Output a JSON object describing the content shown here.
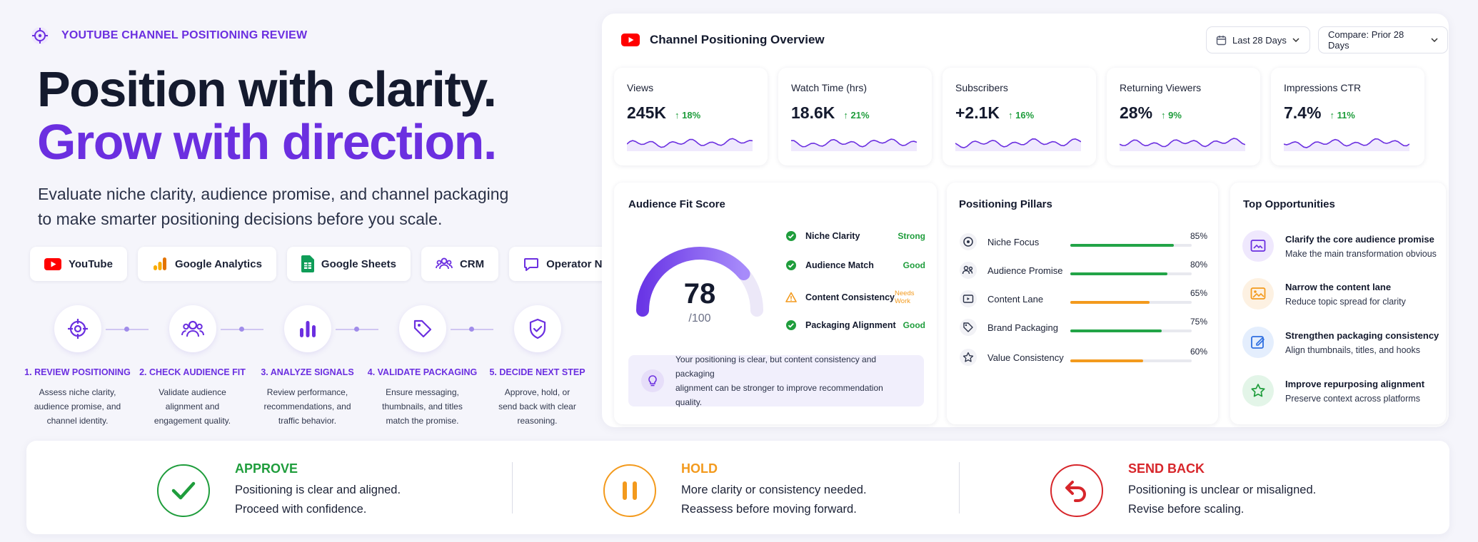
{
  "header": {
    "eyebrow": "YOUTUBE CHANNEL POSITIONING REVIEW",
    "headline_line1": "Position with clarity.",
    "headline_line2": "Grow with direction."
  },
  "subtitle": {
    "line1": "Evaluate niche clarity, audience promise, and channel packaging",
    "line2": "to make smarter positioning decisions before you scale."
  },
  "integrations": [
    "YouTube",
    "Google Analytics",
    "Google Sheets",
    "CRM",
    "Operator Notes"
  ],
  "steps": [
    {
      "title": "1. REVIEW POSITIONING",
      "d1": "Assess niche clarity,",
      "d2": "audience promise, and",
      "d3": "channel identity.",
      "icon": "target-icon"
    },
    {
      "title": "2. CHECK AUDIENCE FIT",
      "d1": "Validate audience",
      "d2": "alignment and",
      "d3": "engagement quality.",
      "icon": "users-icon"
    },
    {
      "title": "3. ANALYZE SIGNALS",
      "d1": "Review performance,",
      "d2": "recommendations, and",
      "d3": "traffic behavior.",
      "icon": "bar-chart-icon"
    },
    {
      "title": "4. VALIDATE PACKAGING",
      "d1": "Ensure messaging,",
      "d2": "thumbnails, and titles",
      "d3": "match the promise.",
      "icon": "tag-icon"
    },
    {
      "title": "5. DECIDE NEXT STEP",
      "d1": "Approve, hold, or",
      "d2": "send back with clear",
      "d3": "reasoning.",
      "icon": "shield-check-icon"
    }
  ],
  "panel": {
    "title": "Channel Positioning Overview",
    "range": "Last 28 Days",
    "compare": "Compare: Prior 28 Days"
  },
  "metrics": [
    {
      "label": "Views",
      "value": "245K",
      "change": "18%"
    },
    {
      "label": "Watch Time (hrs)",
      "value": "18.6K",
      "change": "21%"
    },
    {
      "label": "Subscribers",
      "value": "+2.1K",
      "change": "16%"
    },
    {
      "label": "Returning Viewers",
      "value": "28%",
      "change": "9%"
    },
    {
      "label": "Impressions CTR",
      "value": "7.4%",
      "change": "11%"
    }
  ],
  "audience_fit": {
    "title": "Audience Fit Score",
    "score": "78",
    "out_of": "/100",
    "score_fraction": 0.78,
    "items": [
      {
        "name": "Niche Clarity",
        "status": "Strong",
        "state": "ok"
      },
      {
        "name": "Audience Match",
        "status": "Good",
        "state": "ok"
      },
      {
        "name": "Content Consistency",
        "status": "Needs Work",
        "state": "warn"
      },
      {
        "name": "Packaging Alignment",
        "status": "Good",
        "state": "ok"
      }
    ],
    "note_line1": "Your positioning is clear, but content consistency and packaging",
    "note_line2": "alignment can be stronger to improve recommendation quality."
  },
  "pillars": {
    "title": "Positioning Pillars",
    "items": [
      {
        "name": "Niche Focus",
        "pct": "85%",
        "value": 0.85,
        "color": "#22a447"
      },
      {
        "name": "Audience Promise",
        "pct": "80%",
        "value": 0.8,
        "color": "#22a447"
      },
      {
        "name": "Content Lane",
        "pct": "65%",
        "value": 0.65,
        "color": "#f39a1d"
      },
      {
        "name": "Brand Packaging",
        "pct": "75%",
        "value": 0.75,
        "color": "#22a447"
      },
      {
        "name": "Value Consistency",
        "pct": "60%",
        "value": 0.6,
        "color": "#f39a1d"
      }
    ]
  },
  "opportunities": {
    "title": "Top Opportunities",
    "items": [
      {
        "title": "Clarify the core audience promise",
        "sub": "Make the main transformation obvious"
      },
      {
        "title": "Narrow the content lane",
        "sub": "Reduce topic spread for clarity"
      },
      {
        "title": "Strengthen packaging consistency",
        "sub": "Align thumbnails, titles, and hooks"
      },
      {
        "title": "Improve repurposing alignment",
        "sub": "Preserve context across platforms"
      }
    ]
  },
  "decisions": [
    {
      "title": "APPROVE",
      "l1": "Positioning is clear and aligned.",
      "l2": "Proceed with confidence.",
      "color": "#1f9d3c"
    },
    {
      "title": "HOLD",
      "l1": "More clarity or consistency needed.",
      "l2": "Reassess before moving forward.",
      "color": "#f39a1d"
    },
    {
      "title": "SEND BACK",
      "l1": "Positioning is unclear or misaligned.",
      "l2": "Revise before scaling.",
      "color": "#d7262b"
    }
  ],
  "colors": {
    "accent": "#6b2fe0",
    "positive": "#1f9d3c",
    "warning": "#f39a1d",
    "danger": "#d7262b",
    "youtube": "#ff0000"
  }
}
